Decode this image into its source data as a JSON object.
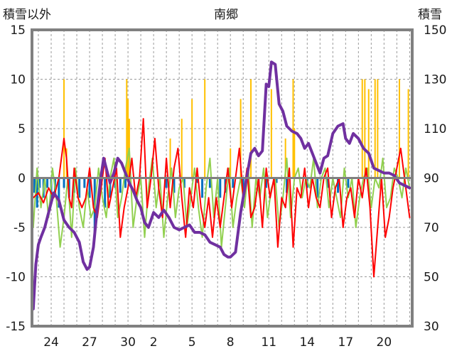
{
  "chart_data": {
    "type": "line",
    "title": "南郷",
    "y_left_label": "積雪以外",
    "y_right_label": "積雪",
    "y_left_range": [
      -15,
      15
    ],
    "y_left_ticks": [
      "15",
      "10",
      "5",
      "0",
      "-5",
      "-10",
      "-15"
    ],
    "y_right_range": [
      30,
      150
    ],
    "y_right_ticks": [
      "150",
      "130",
      "110",
      "90",
      "70",
      "50",
      "30"
    ],
    "x_ticks": [
      "24",
      "27",
      "30",
      "2",
      "5",
      "8",
      "11",
      "14",
      "17",
      "20"
    ],
    "x_range": [
      22.5,
      52.2
    ],
    "x_tick_positions": [
      24,
      27,
      30,
      32,
      35,
      38,
      41,
      44,
      47,
      50
    ],
    "grid": true,
    "colors": {
      "snow": "#7030a0",
      "red": "#ff0000",
      "green": "#92d050",
      "orange": "#ffc000",
      "blue": "#0070c0",
      "frame": "#808080"
    },
    "series": [
      {
        "color_key": "snow",
        "axis": "right",
        "x": [
          22.6,
          22.8,
          23.0,
          23.2,
          23.5,
          23.8,
          24.0,
          24.2,
          24.6,
          25.0,
          25.4,
          25.8,
          26.2,
          26.5,
          26.8,
          27.0,
          27.3,
          27.6,
          27.9,
          28.1,
          28.3,
          28.6,
          28.9,
          29.2,
          29.5,
          29.8,
          30.1,
          30.4,
          30.7,
          31.0,
          31.3,
          31.6,
          32.0,
          32.4,
          32.8,
          33.2,
          33.6,
          34.0,
          34.4,
          34.8,
          35.2,
          35.6,
          36.0,
          36.4,
          36.8,
          37.2,
          37.5,
          37.8,
          38.0,
          38.4,
          38.8,
          39.2,
          39.6,
          39.9,
          40.2,
          40.5,
          40.8,
          41.0,
          41.2,
          41.5,
          41.8,
          42.1,
          42.4,
          42.8,
          43.2,
          43.5,
          43.8,
          44.1,
          44.4,
          44.7,
          45.0,
          45.3,
          45.6,
          46.0,
          46.4,
          46.8,
          47.0,
          47.3,
          47.6,
          48.0,
          48.4,
          48.8,
          49.2,
          49.6,
          50.0,
          50.4,
          50.8,
          51.2,
          51.6,
          52.0
        ],
        "values": [
          37,
          55,
          63,
          66,
          70,
          76,
          80,
          84,
          81,
          73,
          70,
          68,
          64,
          56,
          53,
          54,
          62,
          78,
          91,
          98,
          94,
          88,
          92,
          98,
          96,
          92,
          88,
          85,
          81,
          78,
          72,
          70,
          76,
          74,
          77,
          74,
          70,
          69,
          70,
          71,
          68,
          68,
          67,
          64,
          63,
          62,
          59,
          58,
          58,
          60,
          76,
          88,
          100,
          102,
          99,
          101,
          128,
          127,
          137,
          136,
          120,
          117,
          111,
          109,
          108,
          106,
          102,
          104,
          100,
          96,
          92,
          98,
          99,
          108,
          111,
          112,
          106,
          104,
          108,
          106,
          102,
          100,
          94,
          93,
          92,
          92,
          91,
          88,
          87,
          86
        ]
      },
      {
        "color_key": "red",
        "axis": "left",
        "x": [
          22.6,
          23.0,
          23.4,
          23.8,
          24.2,
          24.6,
          25.0,
          25.2,
          25.4,
          25.6,
          25.8,
          26.1,
          26.4,
          26.7,
          27.0,
          27.3,
          27.6,
          27.9,
          28.2,
          28.5,
          28.8,
          29.1,
          29.4,
          29.7,
          30.0,
          30.3,
          30.6,
          30.9,
          31.2,
          31.5,
          31.8,
          32.1,
          32.4,
          32.7,
          33.0,
          33.3,
          33.6,
          33.9,
          34.2,
          34.5,
          34.8,
          35.1,
          35.4,
          35.7,
          36.0,
          36.3,
          36.6,
          36.9,
          37.2,
          37.5,
          37.8,
          38.1,
          38.4,
          38.7,
          39.0,
          39.3,
          39.6,
          39.9,
          40.2,
          40.5,
          40.8,
          41.1,
          41.4,
          41.7,
          42.0,
          42.3,
          42.6,
          42.9,
          43.2,
          43.5,
          43.8,
          44.1,
          44.4,
          44.7,
          45.0,
          45.3,
          45.6,
          45.9,
          46.2,
          46.5,
          46.8,
          47.1,
          47.4,
          47.7,
          48.0,
          48.3,
          48.6,
          48.9,
          49.2,
          49.5,
          49.8,
          50.1,
          50.4,
          50.7,
          51.0,
          51.3,
          51.6,
          52.0
        ],
        "values": [
          -2,
          -1.5,
          -2.5,
          -1,
          -2,
          0,
          4,
          2,
          -2,
          -3,
          1,
          -2,
          -3,
          -2,
          1,
          -3,
          -4,
          -1,
          2,
          -3,
          -1,
          1,
          -6,
          -3,
          -1,
          2,
          -2,
          0,
          6,
          -3,
          0,
          4,
          -1,
          -4,
          2,
          -3,
          1,
          3,
          -2,
          -6,
          -1,
          -3,
          1,
          -3,
          -5,
          -2,
          -6,
          -2,
          -5,
          -2,
          1,
          -3,
          0,
          3,
          -2,
          1,
          -4,
          -3,
          0,
          -5,
          1,
          -2,
          0,
          -7,
          -2,
          -3,
          1,
          -7,
          -1,
          -2,
          1,
          -3,
          0,
          -2,
          -3,
          0,
          1,
          -4,
          -1,
          0,
          -5,
          -2,
          -1,
          -4,
          0,
          -2,
          1,
          -3,
          -10,
          -5,
          0,
          -6,
          -4,
          -1,
          1,
          3,
          0,
          -4
        ]
      },
      {
        "color_key": "green",
        "axis": "left",
        "x": [
          22.6,
          22.9,
          23.2,
          23.5,
          23.8,
          24.1,
          24.4,
          24.7,
          25.0,
          25.3,
          25.6,
          25.9,
          26.2,
          26.5,
          26.8,
          27.1,
          27.4,
          27.7,
          28.0,
          28.3,
          28.6,
          28.9,
          29.2,
          29.5,
          29.8,
          30.1,
          30.4,
          30.7,
          31.0,
          31.3,
          31.6,
          31.9,
          32.2,
          32.5,
          32.8,
          33.1,
          33.4,
          33.7,
          34.0,
          34.3,
          34.6,
          34.9,
          35.2,
          35.5,
          35.8,
          36.1,
          36.4,
          36.7,
          37.0,
          37.3,
          37.6,
          37.9,
          38.2,
          38.5,
          38.8,
          39.1,
          39.4,
          39.7,
          40.0,
          40.3,
          40.6,
          40.9,
          41.2,
          41.5,
          41.8,
          42.1,
          42.4,
          42.7,
          43.0,
          43.3,
          43.6,
          43.9,
          44.2,
          44.5,
          44.8,
          45.1,
          45.4,
          45.7,
          46.0,
          46.3,
          46.6,
          46.9,
          47.2,
          47.5,
          47.8,
          48.1,
          48.4,
          48.7,
          49.0,
          49.3,
          49.6,
          49.9,
          50.2,
          50.5,
          50.8,
          51.1,
          51.4,
          51.7,
          52.0
        ],
        "values": [
          -5,
          1,
          -3,
          0,
          -4,
          1,
          -2,
          -7,
          -4,
          0,
          -6,
          1,
          -3,
          -5,
          -1,
          -4,
          -3,
          1,
          -2,
          -4,
          0,
          2,
          -4,
          -2,
          1,
          3,
          -5,
          -2,
          0,
          -6,
          -1,
          2,
          -3,
          0,
          -6,
          -2,
          1,
          -4,
          -1,
          0,
          -5,
          -2,
          1,
          -3,
          -6,
          -1,
          2,
          -4,
          0,
          -7,
          -3,
          1,
          -5,
          -2,
          0,
          -3,
          1,
          -5,
          0,
          -2,
          1,
          -4,
          -1,
          0,
          -5,
          -2,
          2,
          -4,
          0,
          1,
          -2,
          0,
          -1,
          2,
          -3,
          0,
          1,
          -3,
          0,
          -2,
          -4,
          1,
          -2,
          0,
          -5,
          -2,
          0,
          1,
          -3,
          0,
          -1,
          2,
          -3,
          -2,
          1,
          0,
          -2,
          1,
          -1
        ]
      },
      {
        "color_key": "orange",
        "axis": "left",
        "x": [
          25.0,
          25.2,
          29.9,
          30.0,
          30.1,
          33.3,
          34.2,
          35.0,
          36.0,
          38.0,
          38.8,
          39.6,
          41.2,
          42.3,
          42.9,
          43.0,
          48.3,
          48.5,
          48.8,
          49.3,
          49.5,
          51.2,
          51.9
        ],
        "values": [
          10,
          3,
          10,
          8,
          6,
          4,
          6,
          8,
          10,
          3,
          8,
          10,
          9,
          4,
          10,
          5,
          10,
          10,
          9,
          10,
          10,
          10,
          9
        ]
      },
      {
        "color_key": "blue",
        "axis": "left",
        "x": [
          22.7,
          22.9,
          23.1,
          23.4,
          23.7,
          24.0,
          24.3,
          24.6,
          25.0,
          25.4,
          25.8,
          26.2,
          26.6,
          27.0,
          27.4,
          27.8,
          28.2,
          28.6,
          29.0,
          29.4,
          29.8,
          33.0,
          33.6,
          34.4,
          35.4,
          35.8,
          36.4,
          37.2,
          37.6,
          38.2,
          39.0,
          40.2,
          40.8,
          41.6,
          42.4,
          44.0,
          44.8,
          45.6,
          46.4,
          47.2
        ],
        "values": [
          -1.5,
          -3,
          -1,
          -2,
          -1,
          -2,
          -1.5,
          -3,
          -1,
          -2,
          -1.5,
          -2,
          -1,
          -2,
          -5.5,
          -1,
          -3,
          -2,
          -1,
          -1.5,
          -1,
          -1,
          -1.5,
          -1,
          -0.5,
          -2,
          -1,
          -2,
          -1.5,
          -1,
          -2,
          -1,
          -1,
          -0.5,
          -1.5,
          -1,
          -2,
          -1,
          -1.5,
          -1
        ]
      }
    ]
  }
}
